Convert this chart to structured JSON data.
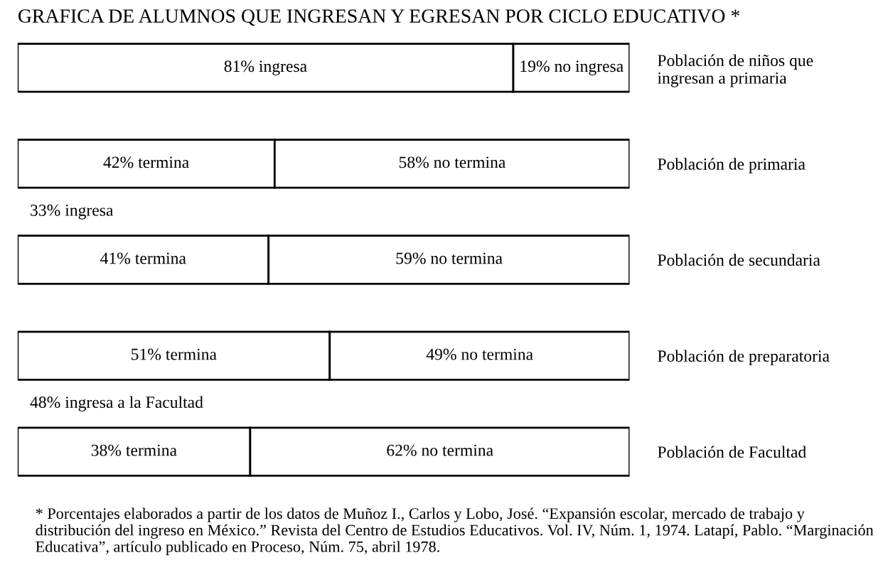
{
  "chart_data": {
    "type": "bar",
    "orientation": "horizontal",
    "stacked": true,
    "title": "GRAFICA DE ALUMNOS QUE INGRESAN Y EGRESAN POR CICLO EDUCATIVO *",
    "categories": [
      "Población de niños que ingresan a primaria",
      "Población de primaria",
      "Población de secundaria",
      "Población de preparatoria",
      "Población de Facultad"
    ],
    "series": [
      {
        "color": "#ffffff",
        "values": [
          81,
          42,
          41,
          51,
          38
        ],
        "value_labels": [
          "81% ingresa",
          "42% termina",
          "41% termina",
          "51% termina",
          "38% termina"
        ]
      },
      {
        "color": "#ffffff",
        "values": [
          19,
          58,
          59,
          49,
          62
        ],
        "value_labels": [
          "19% no ingresa",
          "58% no termina",
          "59% no termina",
          "49% no termina",
          "62% no termina"
        ]
      }
    ],
    "xlim": [
      0,
      100
    ],
    "tick_labels": "y",
    "annotations": [
      "33% ingresa",
      "48% ingresa a la Facultad",
      "* Porcentajes elaborados a partir de los datos de Muñoz I., Carlos y Lobo, José. “Expansión escolar, mercado de trabajo y distribución del ingreso en México.” Revista del Centro de Estudios Educativos. Vol. IV, Núm. 1, 1974. Latapí, Pablo. “Marginación Educativa”, artículo publicado en Proceso, Núm. 75, abril 1978."
    ]
  }
}
